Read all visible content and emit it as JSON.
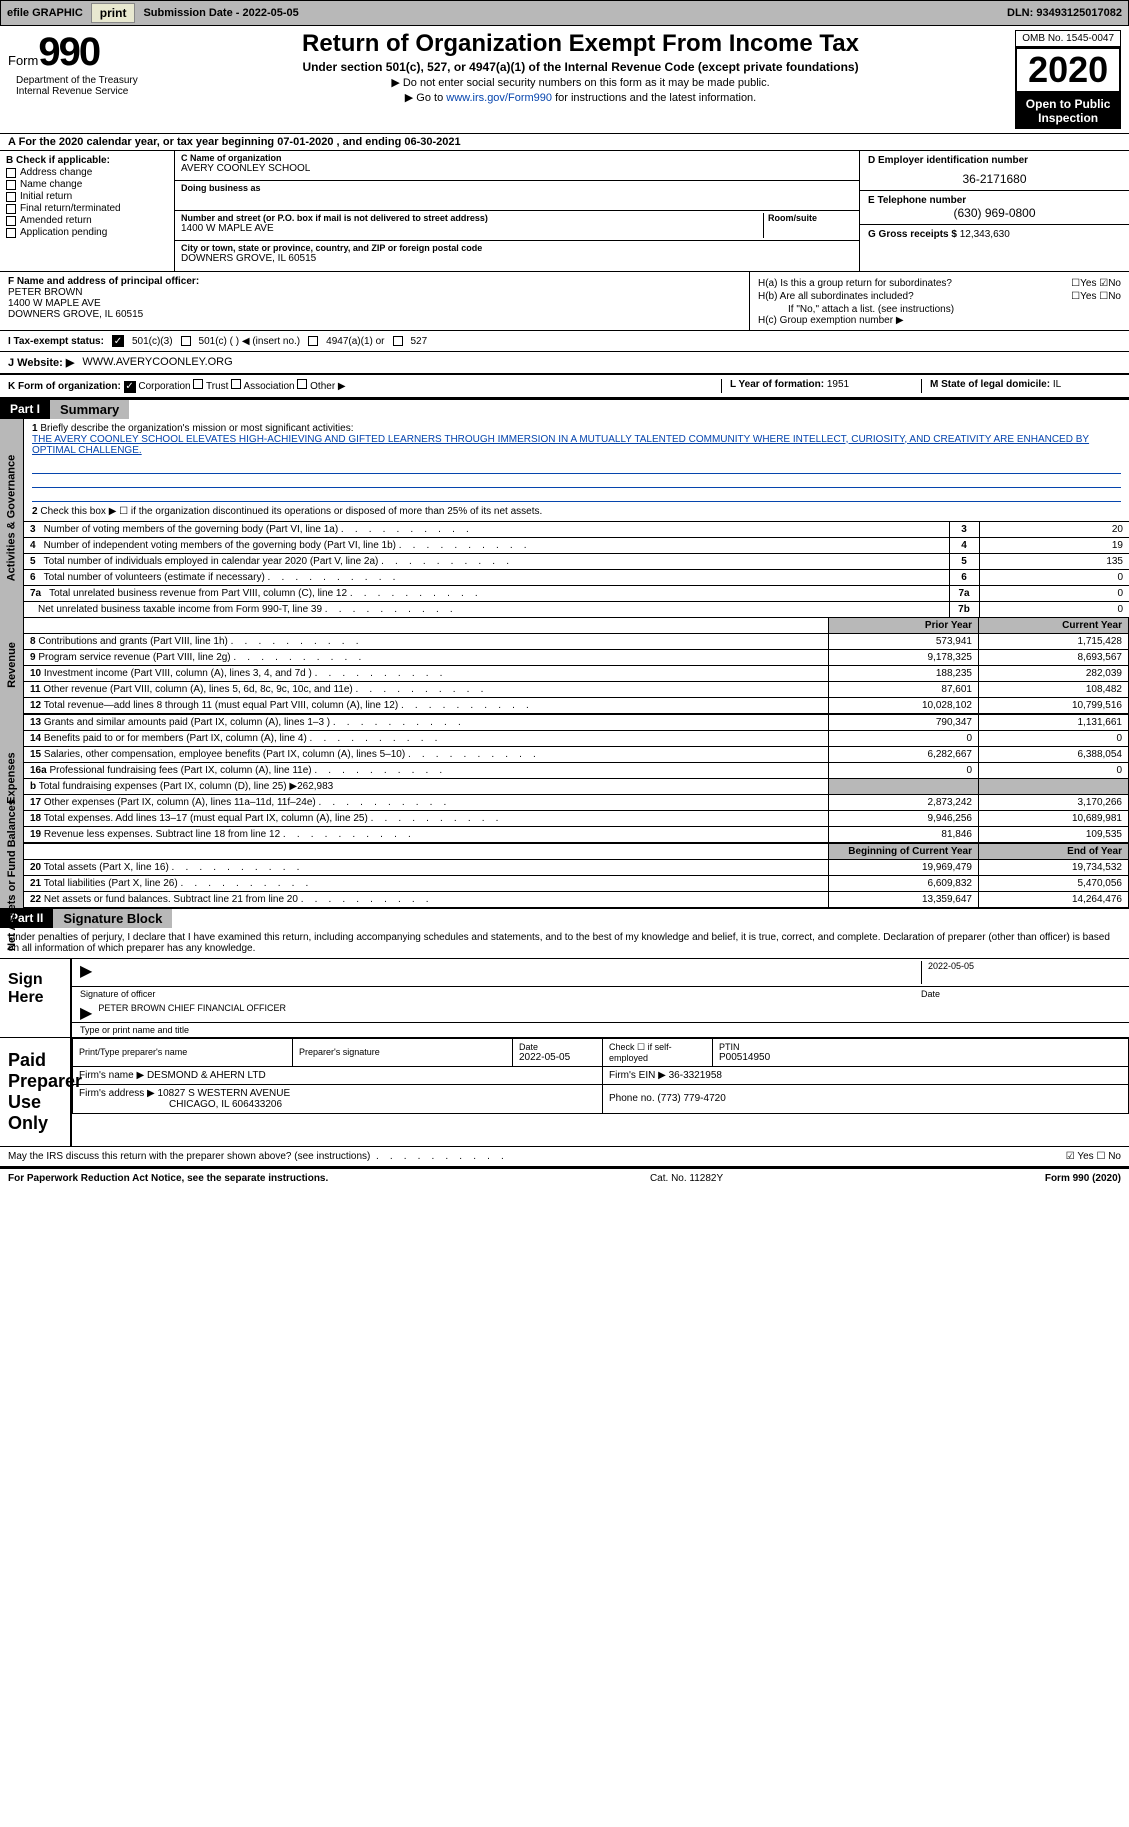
{
  "topbar": {
    "efile_label": "efile GRAPHIC",
    "print_btn": "print",
    "sub_date_label": "Submission Date - ",
    "sub_date": "2022-05-05",
    "dln_label": "DLN: ",
    "dln": "93493125017082"
  },
  "header": {
    "form_word": "Form",
    "form_num": "990",
    "title": "Return of Organization Exempt From Income Tax",
    "subtitle": "Under section 501(c), 527, or 4947(a)(1) of the Internal Revenue Code (except private foundations)",
    "line1": "▶ Do not enter social security numbers on this form as it may be made public.",
    "line2_pre": "▶ Go to ",
    "line2_link": "www.irs.gov/Form990",
    "line2_post": " for instructions and the latest information.",
    "omb": "OMB No. 1545-0047",
    "year": "2020",
    "public1": "Open to Public",
    "public2": "Inspection",
    "dept": "Department of the Treasury\nInternal Revenue Service"
  },
  "period": {
    "text": "For the 2020 calendar year, or tax year beginning 07-01-2020     , and ending 06-30-2021"
  },
  "box_b": {
    "hdr": "B Check if applicable:",
    "items": [
      "Address change",
      "Name change",
      "Initial return",
      "Final return/terminated",
      "Amended return",
      "Application pending"
    ]
  },
  "box_c": {
    "name_lbl": "C Name of organization",
    "name": "AVERY COONLEY SCHOOL",
    "dba_lbl": "Doing business as",
    "dba": "",
    "addr_lbl": "Number and street (or P.O. box if mail is not delivered to street address)",
    "room_lbl": "Room/suite",
    "addr": "1400 W MAPLE AVE",
    "city_lbl": "City or town, state or province, country, and ZIP or foreign postal code",
    "city": "DOWNERS GROVE, IL  60515"
  },
  "box_d": {
    "ein_lbl": "D Employer identification number",
    "ein": "36-2171680",
    "phone_lbl": "E Telephone number",
    "phone": "(630) 969-0800",
    "gross_lbl": "G Gross receipts $ ",
    "gross": "12,343,630"
  },
  "box_f": {
    "lbl": "F Name and address of principal officer:",
    "name": "PETER BROWN",
    "addr1": "1400 W MAPLE AVE",
    "addr2": "DOWNERS GROVE, IL  60515"
  },
  "box_h": {
    "ha": "H(a)  Is this a group return for subordinates?",
    "hb": "H(b)  Are all subordinates included?",
    "hb_note": "If \"No,\" attach a list. (see instructions)",
    "hc": "H(c)  Group exemption number ▶",
    "yes": "Yes",
    "no": "No"
  },
  "tax_exempt": {
    "lbl": "I    Tax-exempt status:",
    "opt1": "501(c)(3)",
    "opt2": "501(c) (   ) ◀ (insert no.)",
    "opt3": "4947(a)(1) or",
    "opt4": "527"
  },
  "website": {
    "lbl": "J    Website: ▶",
    "val": "WWW.AVERYCOONLEY.ORG"
  },
  "box_k": {
    "lbl": "K Form of organization:",
    "opts": [
      "Corporation",
      "Trust",
      "Association",
      "Other ▶"
    ],
    "year_lbl": "L Year of formation: ",
    "year": "1951",
    "state_lbl": "M State of legal domicile: ",
    "state": "IL"
  },
  "part1": {
    "part": "Part I",
    "title": "Summary",
    "q1_lbl": "1",
    "q1": "Briefly describe the organization's mission or most significant activities:",
    "mission": "THE AVERY COONLEY SCHOOL ELEVATES HIGH-ACHIEVING AND GIFTED LEARNERS THROUGH IMMERSION IN A MUTUALLY TALENTED COMMUNITY WHERE INTELLECT, CURIOSITY, AND CREATIVITY ARE ENHANCED BY OPTIMAL CHALLENGE.",
    "q2": "Check this box ▶ ☐  if the organization discontinued its operations or disposed of more than 25% of its net assets.",
    "gov_lines": [
      {
        "n": "3",
        "t": "Number of voting members of the governing body (Part VI, line 1a)",
        "box": "3",
        "v": "20"
      },
      {
        "n": "4",
        "t": "Number of independent voting members of the governing body (Part VI, line 1b)",
        "box": "4",
        "v": "19"
      },
      {
        "n": "5",
        "t": "Total number of individuals employed in calendar year 2020 (Part V, line 2a)",
        "box": "5",
        "v": "135"
      },
      {
        "n": "6",
        "t": "Total number of volunteers (estimate if necessary)",
        "box": "6",
        "v": "0"
      },
      {
        "n": "7a",
        "t": "Total unrelated business revenue from Part VIII, column (C), line 12",
        "box": "7a",
        "v": "0"
      },
      {
        "n": "",
        "t": "Net unrelated business taxable income from Form 990-T, line 39",
        "box": "7b",
        "v": "0"
      }
    ],
    "prior_hdr": "Prior Year",
    "curr_hdr": "Current Year",
    "rev_label": "Revenue",
    "rev_lines": [
      {
        "n": "8",
        "t": "Contributions and grants (Part VIII, line 1h)",
        "p": "573,941",
        "c": "1,715,428"
      },
      {
        "n": "9",
        "t": "Program service revenue (Part VIII, line 2g)",
        "p": "9,178,325",
        "c": "8,693,567"
      },
      {
        "n": "10",
        "t": "Investment income (Part VIII, column (A), lines 3, 4, and 7d )",
        "p": "188,235",
        "c": "282,039"
      },
      {
        "n": "11",
        "t": "Other revenue (Part VIII, column (A), lines 5, 6d, 8c, 9c, 10c, and 11e)",
        "p": "87,601",
        "c": "108,482"
      },
      {
        "n": "12",
        "t": "Total revenue—add lines 8 through 11 (must equal Part VIII, column (A), line 12)",
        "p": "10,028,102",
        "c": "10,799,516"
      }
    ],
    "exp_label": "Expenses",
    "exp_lines": [
      {
        "n": "13",
        "t": "Grants and similar amounts paid (Part IX, column (A), lines 1–3 )",
        "p": "790,347",
        "c": "1,131,661"
      },
      {
        "n": "14",
        "t": "Benefits paid to or for members (Part IX, column (A), line 4)",
        "p": "0",
        "c": "0"
      },
      {
        "n": "15",
        "t": "Salaries, other compensation, employee benefits (Part IX, column (A), lines 5–10)",
        "p": "6,282,667",
        "c": "6,388,054"
      },
      {
        "n": "16a",
        "t": "Professional fundraising fees (Part IX, column (A), line 11e)",
        "p": "0",
        "c": "0"
      },
      {
        "n": "b",
        "t": "Total fundraising expenses (Part IX, column (D), line 25) ▶262,983",
        "p": "",
        "c": "",
        "shaded": true
      },
      {
        "n": "17",
        "t": "Other expenses (Part IX, column (A), lines 11a–11d, 11f–24e)",
        "p": "2,873,242",
        "c": "3,170,266"
      },
      {
        "n": "18",
        "t": "Total expenses. Add lines 13–17 (must equal Part IX, column (A), line 25)",
        "p": "9,946,256",
        "c": "10,689,981"
      },
      {
        "n": "19",
        "t": "Revenue less expenses. Subtract line 18 from line 12",
        "p": "81,846",
        "c": "109,535"
      }
    ],
    "na_label": "Net Assets or Fund Balances",
    "na_hdr1": "Beginning of Current Year",
    "na_hdr2": "End of Year",
    "na_lines": [
      {
        "n": "20",
        "t": "Total assets (Part X, line 16)",
        "p": "19,969,479",
        "c": "19,734,532"
      },
      {
        "n": "21",
        "t": "Total liabilities (Part X, line 26)",
        "p": "6,609,832",
        "c": "5,470,056"
      },
      {
        "n": "22",
        "t": "Net assets or fund balances. Subtract line 21 from line 20",
        "p": "13,359,647",
        "c": "14,264,476"
      }
    ],
    "gov_label": "Activities & Governance"
  },
  "part2": {
    "part": "Part II",
    "title": "Signature Block",
    "decl": "Under penalties of perjury, I declare that I have examined this return, including accompanying schedules and statements, and to the best of my knowledge and belief, it is true, correct, and complete. Declaration of preparer (other than officer) is based on all information of which preparer has any knowledge.",
    "sign_here": "Sign Here",
    "sig_officer_lbl": "Signature of officer",
    "sig_date": "2022-05-05",
    "date_lbl": "Date",
    "officer_name": "PETER BROWN  CHIEF FINANCIAL OFFICER",
    "officer_name_lbl": "Type or print name and title",
    "paid_prep": "Paid Preparer Use Only",
    "prep_name_lbl": "Print/Type preparer's name",
    "prep_sig_lbl": "Preparer's signature",
    "prep_date_lbl": "Date",
    "prep_date": "2022-05-05",
    "self_emp_lbl": "Check ☐ if self-employed",
    "ptin_lbl": "PTIN",
    "ptin": "P00514950",
    "firm_name_lbl": "Firm's name      ▶",
    "firm_name": "DESMOND & AHERN LTD",
    "firm_ein_lbl": "Firm's EIN ▶",
    "firm_ein": "36-3321958",
    "firm_addr_lbl": "Firm's address ▶",
    "firm_addr1": "10827 S WESTERN AVENUE",
    "firm_addr2": "CHICAGO, IL  606433206",
    "firm_phone_lbl": "Phone no. ",
    "firm_phone": "(773) 779-4720",
    "discuss": "May the IRS discuss this return with the preparer shown above? (see instructions)",
    "yes": "Yes",
    "no": "No"
  },
  "footer": {
    "left": "For Paperwork Reduction Act Notice, see the separate instructions.",
    "mid": "Cat. No. 11282Y",
    "right": "Form 990 (2020)"
  }
}
